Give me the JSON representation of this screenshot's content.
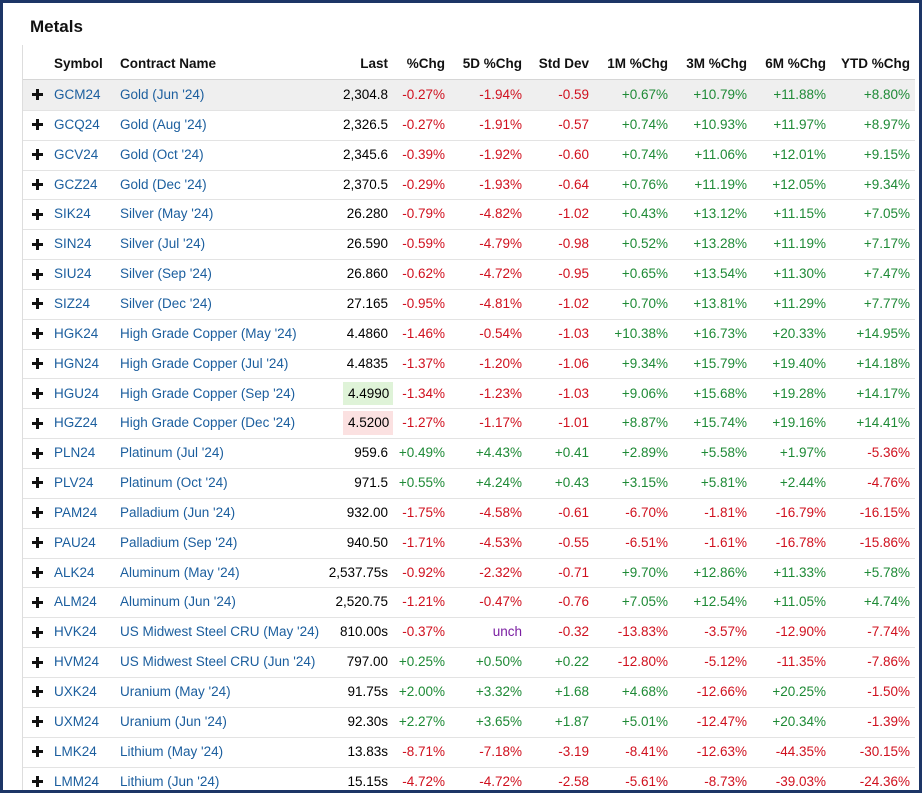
{
  "header": {
    "title": "Metals"
  },
  "table": {
    "columns": [
      "Symbol",
      "Contract Name",
      "Last",
      "%Chg",
      "5D %Chg",
      "Std Dev",
      "1M %Chg",
      "3M %Chg",
      "6M %Chg",
      "YTD %Chg"
    ],
    "rows": [
      [
        "GCM24",
        "Gold (Jun '24)",
        "2,304.8",
        "-0.27%",
        "-1.94%",
        "-0.59",
        "+0.67%",
        "+10.79%",
        "+11.88%",
        "+8.80%"
      ],
      [
        "GCQ24",
        "Gold (Aug '24)",
        "2,326.5",
        "-0.27%",
        "-1.91%",
        "-0.57",
        "+0.74%",
        "+10.93%",
        "+11.97%",
        "+8.97%"
      ],
      [
        "GCV24",
        "Gold (Oct '24)",
        "2,345.6",
        "-0.39%",
        "-1.92%",
        "-0.60",
        "+0.74%",
        "+11.06%",
        "+12.01%",
        "+9.15%"
      ],
      [
        "GCZ24",
        "Gold (Dec '24)",
        "2,370.5",
        "-0.29%",
        "-1.93%",
        "-0.64",
        "+0.76%",
        "+11.19%",
        "+12.05%",
        "+9.34%"
      ],
      [
        "SIK24",
        "Silver (May '24)",
        "26.280",
        "-0.79%",
        "-4.82%",
        "-1.02",
        "+0.43%",
        "+13.12%",
        "+11.15%",
        "+7.05%"
      ],
      [
        "SIN24",
        "Silver (Jul '24)",
        "26.590",
        "-0.59%",
        "-4.79%",
        "-0.98",
        "+0.52%",
        "+13.28%",
        "+11.19%",
        "+7.17%"
      ],
      [
        "SIU24",
        "Silver (Sep '24)",
        "26.860",
        "-0.62%",
        "-4.72%",
        "-0.95",
        "+0.65%",
        "+13.54%",
        "+11.30%",
        "+7.47%"
      ],
      [
        "SIZ24",
        "Silver (Dec '24)",
        "27.165",
        "-0.95%",
        "-4.81%",
        "-1.02",
        "+0.70%",
        "+13.81%",
        "+11.29%",
        "+7.77%"
      ],
      [
        "HGK24",
        "High Grade Copper (May '24)",
        "4.4860",
        "-1.46%",
        "-0.54%",
        "-1.03",
        "+10.38%",
        "+16.73%",
        "+20.33%",
        "+14.95%"
      ],
      [
        "HGN24",
        "High Grade Copper (Jul '24)",
        "4.4835",
        "-1.37%",
        "-1.20%",
        "-1.06",
        "+9.34%",
        "+15.79%",
        "+19.40%",
        "+14.18%"
      ],
      [
        "HGU24",
        "High Grade Copper (Sep '24)",
        "4.4990",
        "-1.34%",
        "-1.23%",
        "-1.03",
        "+9.06%",
        "+15.68%",
        "+19.28%",
        "+14.17%"
      ],
      [
        "HGZ24",
        "High Grade Copper (Dec '24)",
        "4.5200",
        "-1.27%",
        "-1.17%",
        "-1.01",
        "+8.87%",
        "+15.74%",
        "+19.16%",
        "+14.41%"
      ],
      [
        "PLN24",
        "Platinum (Jul '24)",
        "959.6",
        "+0.49%",
        "+4.43%",
        "+0.41",
        "+2.89%",
        "+5.58%",
        "+1.97%",
        "-5.36%"
      ],
      [
        "PLV24",
        "Platinum (Oct '24)",
        "971.5",
        "+0.55%",
        "+4.24%",
        "+0.43",
        "+3.15%",
        "+5.81%",
        "+2.44%",
        "-4.76%"
      ],
      [
        "PAM24",
        "Palladium (Jun '24)",
        "932.00",
        "-1.75%",
        "-4.58%",
        "-0.61",
        "-6.70%",
        "-1.81%",
        "-16.79%",
        "-16.15%"
      ],
      [
        "PAU24",
        "Palladium (Sep '24)",
        "940.50",
        "-1.71%",
        "-4.53%",
        "-0.55",
        "-6.51%",
        "-1.61%",
        "-16.78%",
        "-15.86%"
      ],
      [
        "ALK24",
        "Aluminum (May '24)",
        "2,537.75s",
        "-0.92%",
        "-2.32%",
        "-0.71",
        "+9.70%",
        "+12.86%",
        "+11.33%",
        "+5.78%"
      ],
      [
        "ALM24",
        "Aluminum (Jun '24)",
        "2,520.75",
        "-1.21%",
        "-0.47%",
        "-0.76",
        "+7.05%",
        "+12.54%",
        "+11.05%",
        "+4.74%"
      ],
      [
        "HVK24",
        "US Midwest Steel CRU (May '24)",
        "810.00s",
        "-0.37%",
        "unch",
        "-0.32",
        "-13.83%",
        "-3.57%",
        "-12.90%",
        "-7.74%"
      ],
      [
        "HVM24",
        "US Midwest Steel CRU (Jun '24)",
        "797.00",
        "+0.25%",
        "+0.50%",
        "+0.22",
        "-12.80%",
        "-5.12%",
        "-11.35%",
        "-7.86%"
      ],
      [
        "UXK24",
        "Uranium (May '24)",
        "91.75s",
        "+2.00%",
        "+3.32%",
        "+1.68",
        "+4.68%",
        "-12.66%",
        "+20.25%",
        "-1.50%"
      ],
      [
        "UXM24",
        "Uranium (Jun '24)",
        "92.30s",
        "+2.27%",
        "+3.65%",
        "+1.87",
        "+5.01%",
        "-12.47%",
        "+20.34%",
        "-1.39%"
      ],
      [
        "LMK24",
        "Lithium (May '24)",
        "13.83s",
        "-8.71%",
        "-7.18%",
        "-3.19",
        "-8.41%",
        "-12.63%",
        "-44.35%",
        "-30.15%"
      ],
      [
        "LMM24",
        "Lithium (Jun '24)",
        "15.15s",
        "-4.72%",
        "-4.72%",
        "-2.58",
        "-5.61%",
        "-8.73%",
        "-39.03%",
        "-24.36%"
      ]
    ]
  }
}
